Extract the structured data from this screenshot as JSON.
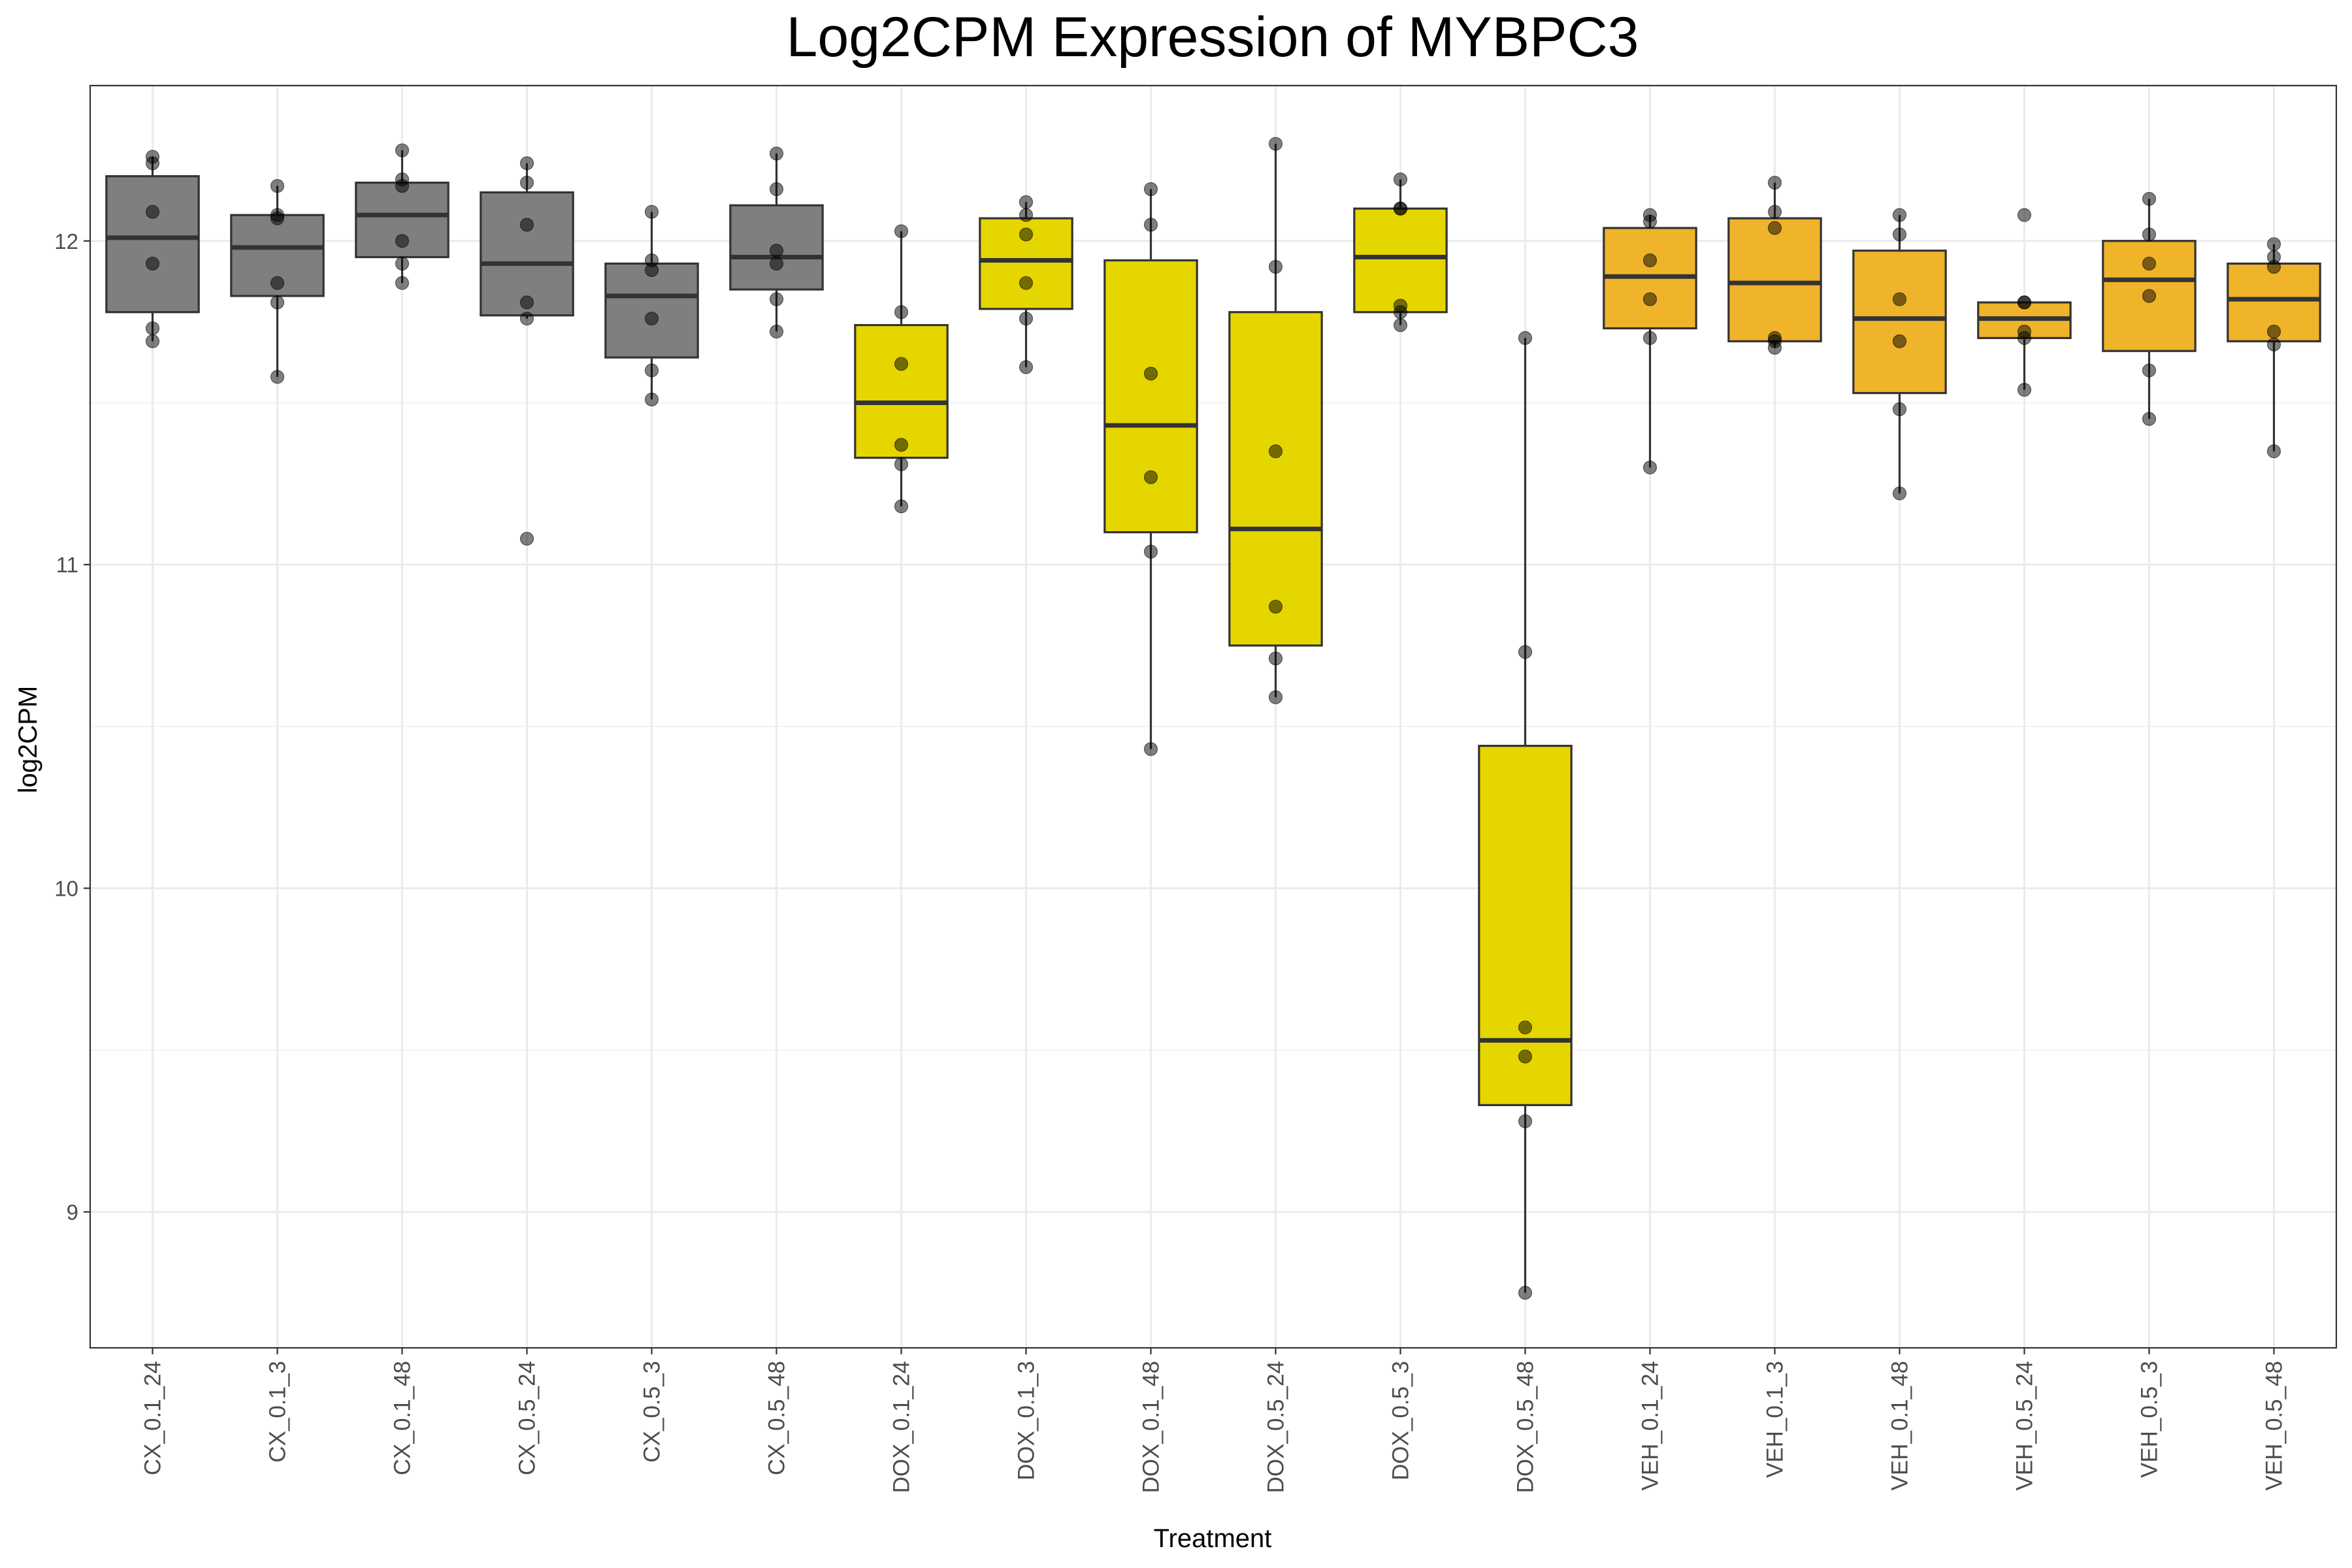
{
  "chart_data": {
    "type": "boxplot",
    "title": "Log2CPM Expression of MYBPC3",
    "xlabel": "Treatment",
    "ylabel": "log2CPM",
    "ylim": [
      8.58,
      12.48
    ],
    "yticks": [
      9,
      10,
      11,
      12
    ],
    "grid": true,
    "legend": "none",
    "colors": {
      "CX": "#7f7f7f",
      "DOX": "#e6d600",
      "VEH": "#f0b42a"
    },
    "categories": [
      "CX_0.1_24",
      "CX_0.1_3",
      "CX_0.1_48",
      "CX_0.5_24",
      "CX_0.5_3",
      "CX_0.5_48",
      "DOX_0.1_24",
      "DOX_0.1_3",
      "DOX_0.1_48",
      "DOX_0.5_24",
      "DOX_0.5_3",
      "DOX_0.5_48",
      "VEH_0.1_24",
      "VEH_0.1_3",
      "VEH_0.1_48",
      "VEH_0.5_24",
      "VEH_0.5_3",
      "VEH_0.5_48"
    ],
    "groups": [
      "CX",
      "CX",
      "CX",
      "CX",
      "CX",
      "CX",
      "DOX",
      "DOX",
      "DOX",
      "DOX",
      "DOX",
      "DOX",
      "VEH",
      "VEH",
      "VEH",
      "VEH",
      "VEH",
      "VEH"
    ],
    "boxes": [
      {
        "q1": 11.78,
        "median": 12.01,
        "q3": 12.2,
        "whisker_low": 11.69,
        "whisker_high": 12.26
      },
      {
        "q1": 11.83,
        "median": 11.98,
        "q3": 12.08,
        "whisker_low": 11.58,
        "whisker_high": 12.17
      },
      {
        "q1": 11.95,
        "median": 12.08,
        "q3": 12.18,
        "whisker_low": 11.87,
        "whisker_high": 12.28
      },
      {
        "q1": 11.77,
        "median": 11.93,
        "q3": 12.15,
        "whisker_low": 11.76,
        "whisker_high": 12.24
      },
      {
        "q1": 11.64,
        "median": 11.83,
        "q3": 11.93,
        "whisker_low": 11.51,
        "whisker_high": 12.09
      },
      {
        "q1": 11.85,
        "median": 11.95,
        "q3": 12.11,
        "whisker_low": 11.72,
        "whisker_high": 12.27
      },
      {
        "q1": 11.33,
        "median": 11.5,
        "q3": 11.74,
        "whisker_low": 11.18,
        "whisker_high": 12.03
      },
      {
        "q1": 11.79,
        "median": 11.94,
        "q3": 12.07,
        "whisker_low": 11.61,
        "whisker_high": 12.12
      },
      {
        "q1": 11.1,
        "median": 11.43,
        "q3": 11.94,
        "whisker_low": 10.43,
        "whisker_high": 12.16
      },
      {
        "q1": 10.75,
        "median": 11.11,
        "q3": 11.78,
        "whisker_low": 10.59,
        "whisker_high": 12.3
      },
      {
        "q1": 11.78,
        "median": 11.95,
        "q3": 12.1,
        "whisker_low": 11.74,
        "whisker_high": 12.19
      },
      {
        "q1": 9.33,
        "median": 9.53,
        "q3": 10.44,
        "whisker_low": 8.75,
        "whisker_high": 11.7
      },
      {
        "q1": 11.73,
        "median": 11.89,
        "q3": 12.04,
        "whisker_low": 11.3,
        "whisker_high": 12.08
      },
      {
        "q1": 11.69,
        "median": 11.87,
        "q3": 12.07,
        "whisker_low": 11.67,
        "whisker_high": 12.18
      },
      {
        "q1": 11.53,
        "median": 11.76,
        "q3": 11.97,
        "whisker_low": 11.22,
        "whisker_high": 12.08
      },
      {
        "q1": 11.7,
        "median": 11.76,
        "q3": 11.81,
        "whisker_low": 11.54,
        "whisker_high": 11.81
      },
      {
        "q1": 11.66,
        "median": 11.88,
        "q3": 12.0,
        "whisker_low": 11.45,
        "whisker_high": 12.13
      },
      {
        "q1": 11.69,
        "median": 11.82,
        "q3": 11.93,
        "whisker_low": 11.35,
        "whisker_high": 11.99
      }
    ],
    "points": [
      [
        12.26,
        12.24,
        12.09,
        11.93,
        11.73,
        11.69
      ],
      [
        12.17,
        12.08,
        12.07,
        11.87,
        11.81,
        11.58
      ],
      [
        12.28,
        12.19,
        12.17,
        12.0,
        11.93,
        11.87
      ],
      [
        12.24,
        12.18,
        12.05,
        11.81,
        11.76,
        11.08
      ],
      [
        12.09,
        11.94,
        11.91,
        11.76,
        11.6,
        11.51
      ],
      [
        12.27,
        12.16,
        11.97,
        11.93,
        11.82,
        11.72
      ],
      [
        12.03,
        11.78,
        11.62,
        11.37,
        11.31,
        11.18
      ],
      [
        12.12,
        12.08,
        12.02,
        11.87,
        11.76,
        11.61
      ],
      [
        12.16,
        12.05,
        11.59,
        11.27,
        11.04,
        10.43
      ],
      [
        12.3,
        11.92,
        11.35,
        10.87,
        10.71,
        10.59
      ],
      [
        12.19,
        12.1,
        12.1,
        11.8,
        11.78,
        11.74
      ],
      [
        11.7,
        10.73,
        9.57,
        9.48,
        9.28,
        8.75
      ],
      [
        12.08,
        12.06,
        11.94,
        11.82,
        11.7,
        11.3
      ],
      [
        12.18,
        12.09,
        12.04,
        11.7,
        11.69,
        11.67
      ],
      [
        12.08,
        12.02,
        11.82,
        11.69,
        11.48,
        11.22
      ],
      [
        12.08,
        11.81,
        11.81,
        11.72,
        11.7,
        11.54
      ],
      [
        12.13,
        12.02,
        11.93,
        11.83,
        11.6,
        11.45
      ],
      [
        11.99,
        11.95,
        11.92,
        11.72,
        11.68,
        11.35
      ]
    ]
  }
}
